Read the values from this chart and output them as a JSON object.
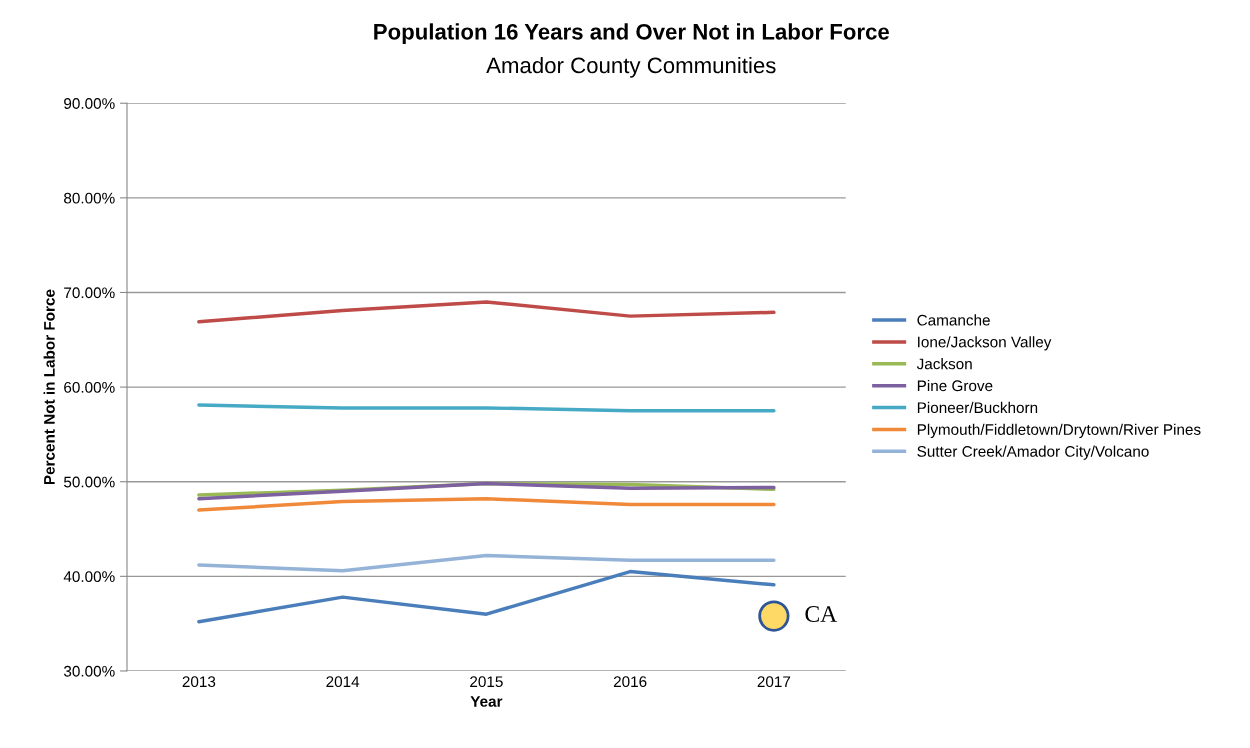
{
  "chart_data": {
    "type": "line",
    "title": "Population 16 Years and Over Not in Labor Force",
    "subtitle": "Amador County Communities",
    "xlabel": "Year",
    "ylabel": "Percent Not in Labor Force",
    "categories": [
      "2013",
      "2014",
      "2015",
      "2016",
      "2017"
    ],
    "series": [
      {
        "name": "Camanche",
        "color": "#4a7ebb",
        "values": [
          35.2,
          37.8,
          36.0,
          40.5,
          39.1
        ]
      },
      {
        "name": "Ione/Jackson Valley",
        "color": "#be4b48",
        "values": [
          66.9,
          68.1,
          69.0,
          67.5,
          67.9
        ]
      },
      {
        "name": "Jackson",
        "color": "#98b954",
        "values": [
          48.6,
          49.1,
          49.8,
          49.7,
          49.2
        ]
      },
      {
        "name": "Pine Grove",
        "color": "#7d60a0",
        "values": [
          48.2,
          49.0,
          49.8,
          49.3,
          49.4
        ]
      },
      {
        "name": "Pioneer/Buckhorn",
        "color": "#46aac5",
        "values": [
          58.1,
          57.8,
          57.8,
          57.5,
          57.5
        ]
      },
      {
        "name": "Plymouth/Fiddletown/Drytown/River Pines",
        "color": "#f08a3a",
        "values": [
          47.0,
          47.9,
          48.2,
          47.6,
          47.6
        ]
      },
      {
        "name": "Sutter Creek/Amador City/Volcano",
        "color": "#95b3d7",
        "values": [
          41.2,
          40.6,
          42.2,
          41.7,
          41.7
        ]
      },
      {
        "name": "CA",
        "type": "scatter",
        "color": "#ffd966",
        "marker": "circle",
        "values": [
          null,
          null,
          null,
          null,
          35.8
        ]
      }
    ],
    "ylim": [
      30,
      90
    ],
    "yticks": [
      {
        "value": 30,
        "label": "30.00%"
      },
      {
        "value": 40,
        "label": "40.00%"
      },
      {
        "value": 50,
        "label": "50.00%"
      },
      {
        "value": 60,
        "label": "60.00%"
      },
      {
        "value": 70,
        "label": "70.00%"
      },
      {
        "value": 80,
        "label": "80.00%"
      },
      {
        "value": 90,
        "label": "90.00%"
      }
    ],
    "grid": "y",
    "legend": "right",
    "marker": "none"
  }
}
